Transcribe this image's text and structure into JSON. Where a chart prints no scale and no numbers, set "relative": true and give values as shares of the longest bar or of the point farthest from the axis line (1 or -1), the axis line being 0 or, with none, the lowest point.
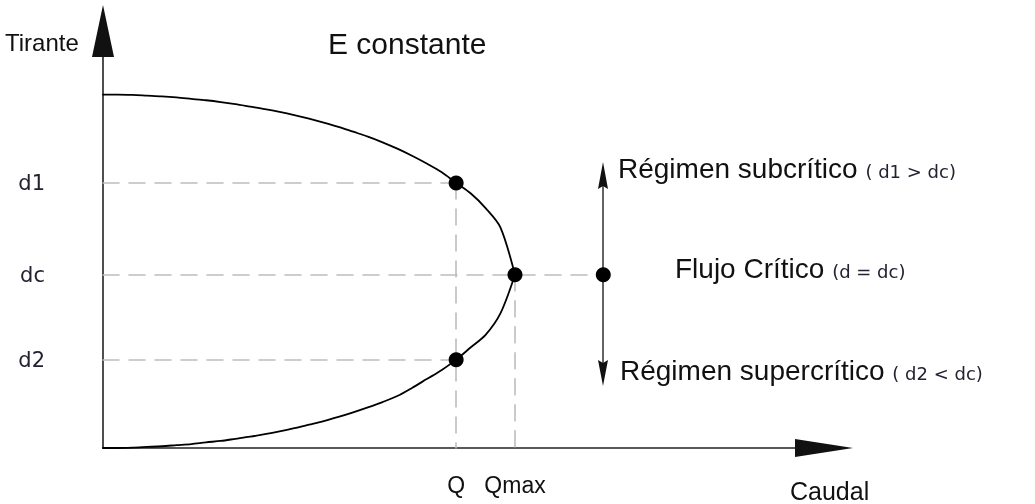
{
  "chart_data": {
    "type": "line",
    "title": "E constante",
    "xlabel": "Caudal",
    "ylabel": "Tirante",
    "relative": true,
    "categories": [
      null,
      null,
      null,
      null,
      null,
      null,
      null,
      null,
      null,
      null,
      null,
      null,
      null,
      null,
      null,
      null,
      null,
      null,
      null,
      null,
      null,
      null,
      null,
      null,
      "Q",
      null,
      null,
      null,
      "Qmax",
      null,
      null,
      null,
      null,
      null,
      null,
      null,
      null,
      null,
      null,
      null,
      null,
      null,
      null,
      null,
      null,
      null,
      null,
      null,
      null,
      null
    ],
    "series": [
      {
        "color": "#000000",
        "line_style": "solid",
        "values": [
          1,
          1,
          0.999,
          0.997,
          0.995,
          0.992,
          0.988,
          0.984,
          0.979,
          0.973,
          0.966,
          0.959,
          0.951,
          0.942,
          0.932,
          0.921,
          0.909,
          0.895,
          0.881,
          0.865,
          0.847,
          0.827,
          0.805,
          0.781,
          0.75,
          0.72,
          0.679,
          0.625,
          0.49,
          null,
          null,
          null,
          null,
          null,
          null,
          null,
          null,
          null,
          null,
          null,
          null,
          null,
          null,
          null,
          null,
          null,
          null,
          null,
          null,
          null
        ]
      },
      {
        "color": "#000000",
        "line_style": "solid",
        "values": [
          0,
          0,
          0.001,
          0.003,
          0.005,
          0.008,
          0.011,
          0.016,
          0.02,
          0.026,
          0.032,
          0.039,
          0.047,
          0.056,
          0.066,
          0.076,
          0.088,
          0.101,
          0.115,
          0.13,
          0.147,
          0.17,
          0.195,
          0.22,
          0.25,
          0.285,
          0.32,
          0.38,
          0.49,
          null,
          null,
          null,
          null,
          null,
          null,
          null,
          null,
          null,
          null,
          null,
          null,
          null,
          null,
          null,
          null,
          null,
          null,
          null,
          null,
          null
        ]
      },
      {
        "color": "#bdbdbd",
        "line_style": "dashed",
        "x": [
          "Qmax",
          "Qmax"
        ],
        "values": [
          0.49,
          0
        ]
      },
      {
        "type": "scatter",
        "color": "#000000",
        "marker": "circle",
        "values": [
          null,
          null,
          null,
          null,
          null,
          null,
          null,
          null,
          null,
          null,
          null,
          null,
          null,
          null,
          null,
          null,
          null,
          null,
          null,
          null,
          null,
          null,
          null,
          null,
          0.75,
          null,
          null,
          null,
          0.49,
          null,
          null,
          null,
          null,
          null,
          0.49,
          null,
          null,
          null,
          null,
          null,
          null,
          null,
          null,
          null,
          null,
          null,
          null,
          null,
          null,
          null
        ]
      },
      {
        "type": "scatter",
        "color": "#000000",
        "marker": "circle",
        "values": [
          null,
          null,
          null,
          null,
          null,
          null,
          null,
          null,
          null,
          null,
          null,
          null,
          null,
          null,
          null,
          null,
          null,
          null,
          null,
          null,
          null,
          null,
          null,
          null,
          0.25,
          null,
          null,
          null,
          null,
          null,
          null,
          null,
          null,
          null,
          null,
          null,
          null,
          null,
          null,
          null,
          null,
          null,
          null,
          null,
          null,
          null,
          null,
          null,
          null,
          null
        ]
      }
    ],
    "ref_lines": [
      {
        "axis": "y",
        "value": 0.75,
        "label": "d1",
        "color": "#bdbdbd",
        "line_style": "dashed"
      },
      {
        "axis": "y",
        "value": 0.49,
        "label": "dc",
        "color": "#bdbdbd",
        "line_style": "dashed"
      },
      {
        "axis": "y",
        "value": 0.25,
        "label": "d2",
        "color": "#bdbdbd",
        "line_style": "dashed"
      },
      {
        "axis": "x",
        "value": "Q",
        "color": "#bdbdbd",
        "line_style": "dashed"
      }
    ],
    "annotations": [
      "Régimen subcrítico ( d1 > dc)",
      "Flujo Crítico (d = dc)",
      "Régimen supercrítico ( d2 < dc)"
    ]
  }
}
